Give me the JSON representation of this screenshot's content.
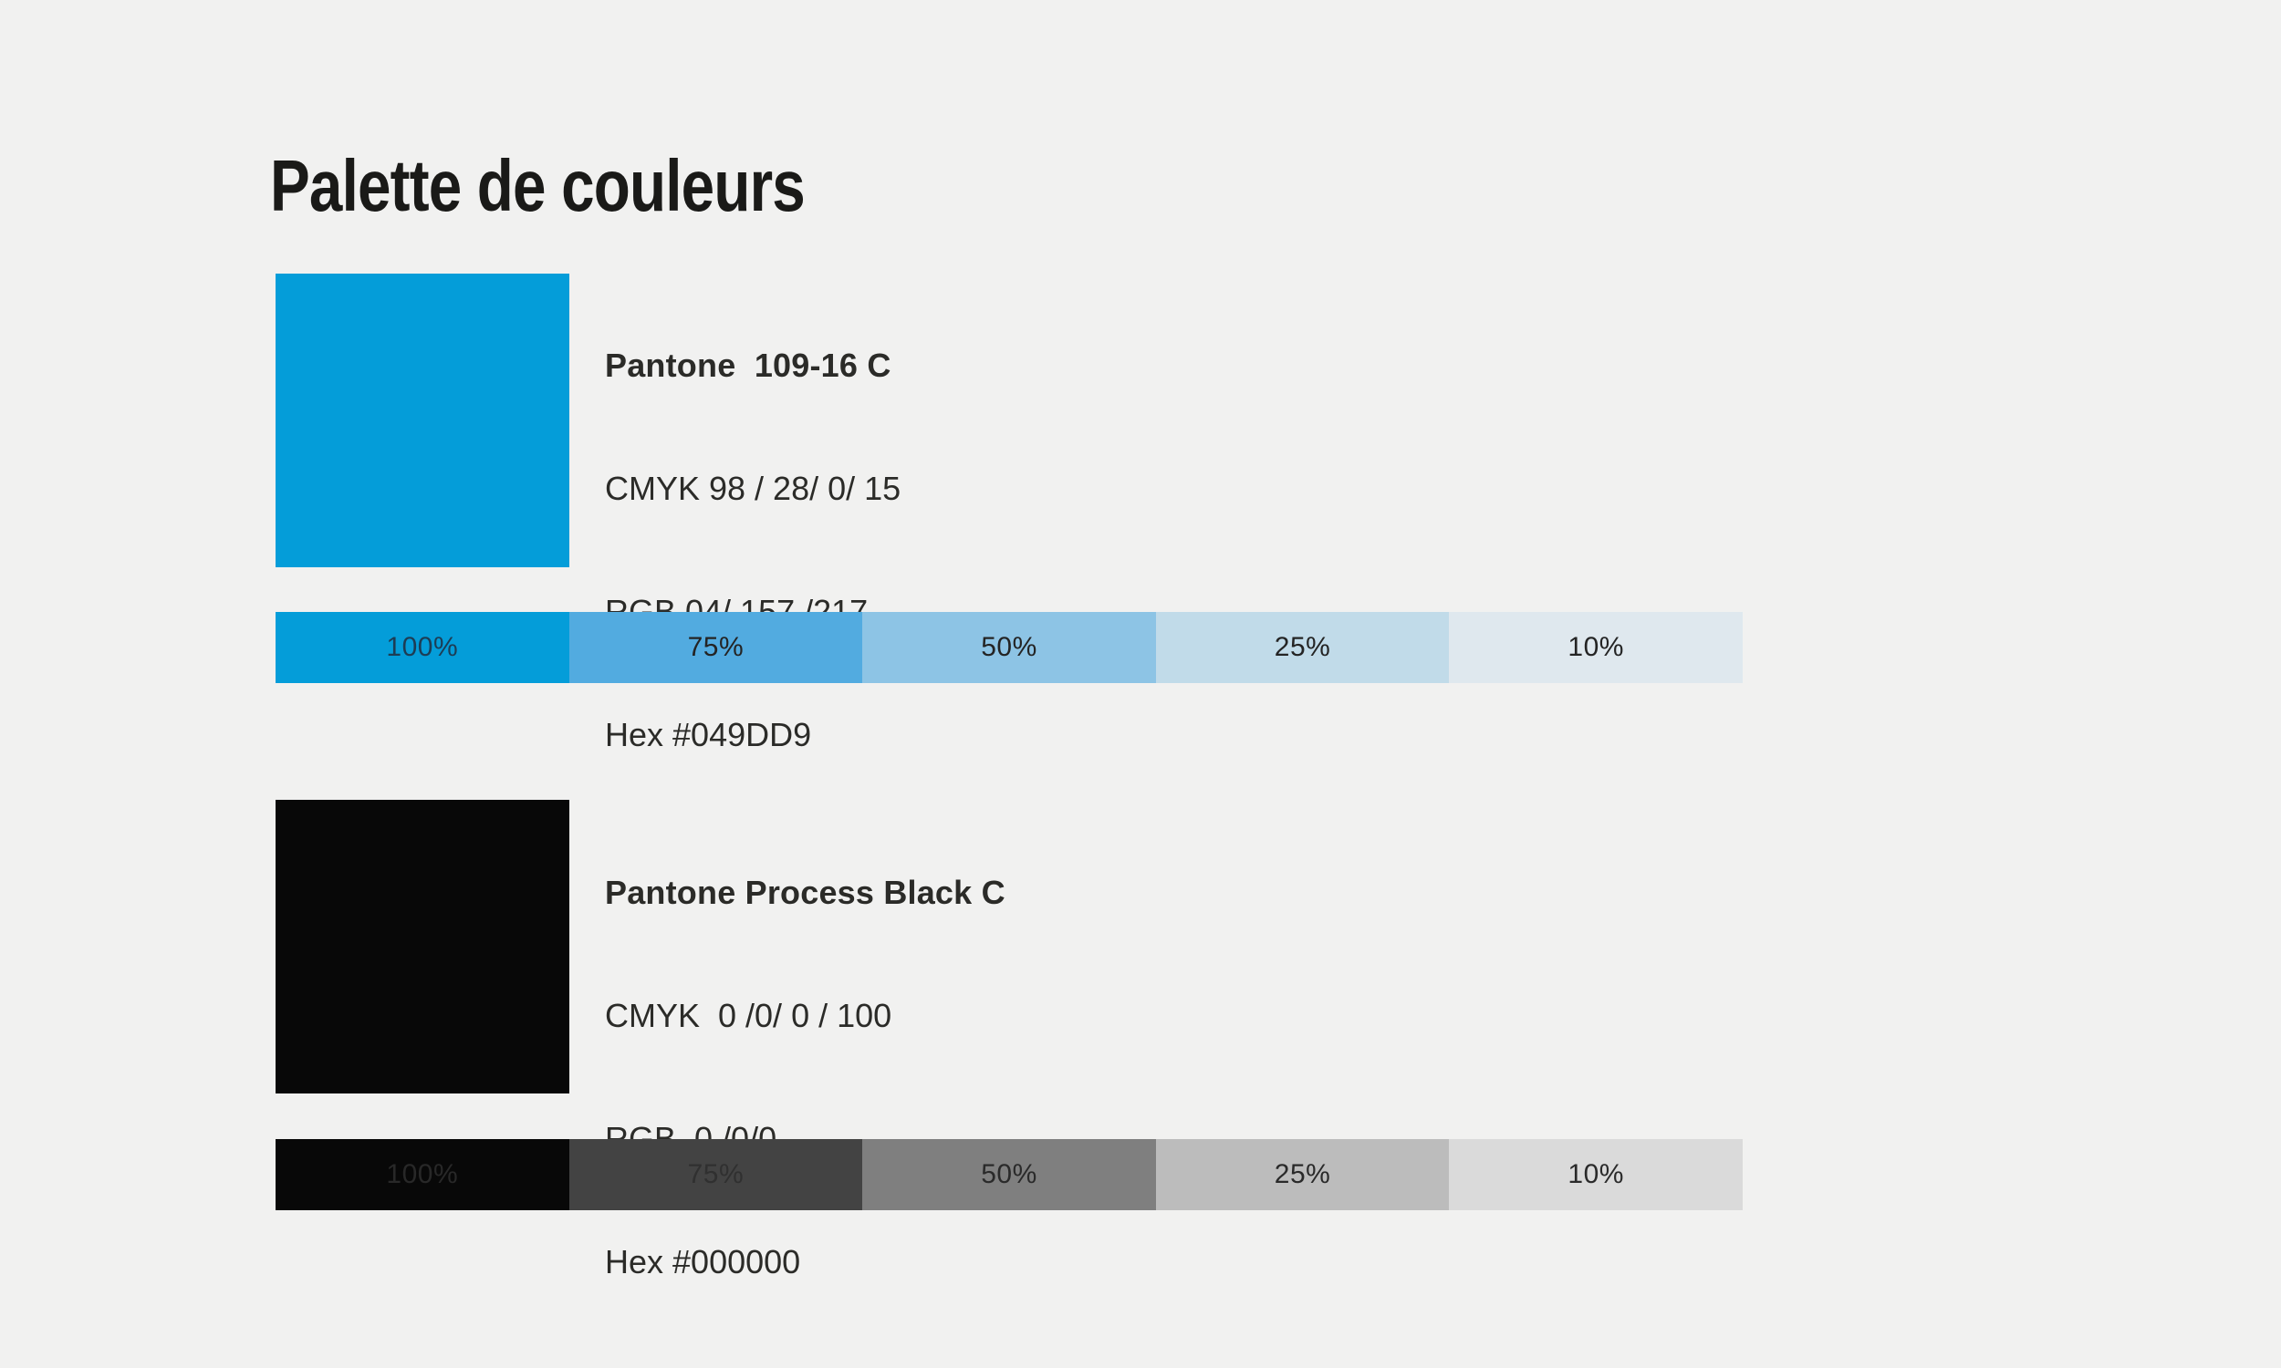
{
  "page": {
    "title": "Palette de couleurs",
    "background": "#F1F1F0",
    "title_color": "#1A1A18",
    "text_color": "#2B2B28"
  },
  "colors": [
    {
      "id": "blue",
      "name": "Pantone  109-16 C",
      "cmyk": "CMYK 98 / 28/ 0/ 15",
      "rgb": "RGB 04/ 157 /217",
      "hex": "Hex #049DD9",
      "swatch": "#049DD9",
      "tints": [
        {
          "label": "100%",
          "color": "#049DD9",
          "text": "#1D3D55"
        },
        {
          "label": "75%",
          "color": "#52ABE0",
          "text": "#242424"
        },
        {
          "label": "50%",
          "color": "#8DC4E5",
          "text": "#242424"
        },
        {
          "label": "25%",
          "color": "#C1DBE9",
          "text": "#242424"
        },
        {
          "label": "10%",
          "color": "#DFE8EE",
          "text": "#242424"
        }
      ]
    },
    {
      "id": "black",
      "name": "Pantone Process Black C",
      "cmyk": "CMYK  0 /0/ 0 / 100",
      "rgb": "RGB  0 /0/0",
      "hex": "Hex #000000",
      "swatch": "#080808",
      "tints": [
        {
          "label": "100%",
          "color": "#080808",
          "text": "#282828"
        },
        {
          "label": "75%",
          "color": "#434343",
          "text": "#303030"
        },
        {
          "label": "50%",
          "color": "#7F7F7F",
          "text": "#2A2A2A"
        },
        {
          "label": "25%",
          "color": "#BCBCBC",
          "text": "#2A2A2A"
        },
        {
          "label": "10%",
          "color": "#DADADA",
          "text": "#2A2A2A"
        }
      ]
    }
  ]
}
